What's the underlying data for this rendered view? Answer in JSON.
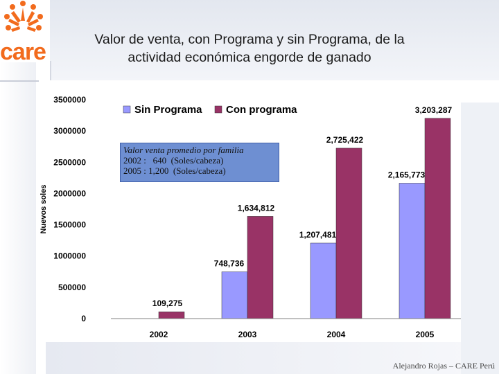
{
  "slide": {
    "title_line1": "Valor de venta, con Programa y sin Programa, de la",
    "title_line2": "actividad económica engorde de ganado",
    "footer": "Alejandro Rojas – CARE Perú",
    "logo_text": "care"
  },
  "note": {
    "heading": "Valor venta promedio por familia",
    "line1": "2002 :   640  (Soles/cabeza)",
    "line2": "2005 : 1,200  (Soles/cabeza)"
  },
  "colors": {
    "sin_programa": "#9999ff",
    "con_programa": "#993366",
    "logo": "#f26b1d"
  },
  "chart_data": {
    "type": "bar",
    "title": "",
    "xlabel": "",
    "ylabel": "Nuevos soles",
    "ylim": [
      0,
      3500000
    ],
    "yticks": [
      "0",
      "500000",
      "1000000",
      "1500000",
      "2000000",
      "2500000",
      "3000000",
      "3500000"
    ],
    "categories": [
      "2002",
      "2003",
      "2004",
      "2005"
    ],
    "series": [
      {
        "name": "Sin Programa",
        "values": [
          0,
          748736,
          1207481,
          2165773
        ],
        "labels": [
          "",
          "748,736",
          "1,207,481",
          "2,165,773"
        ]
      },
      {
        "name": "Con programa",
        "values": [
          109275,
          1634812,
          2725422,
          3203287
        ],
        "labels": [
          "109,275",
          "1,634,812",
          "2,725,422",
          "3,203,287"
        ]
      }
    ],
    "legend": "top"
  }
}
